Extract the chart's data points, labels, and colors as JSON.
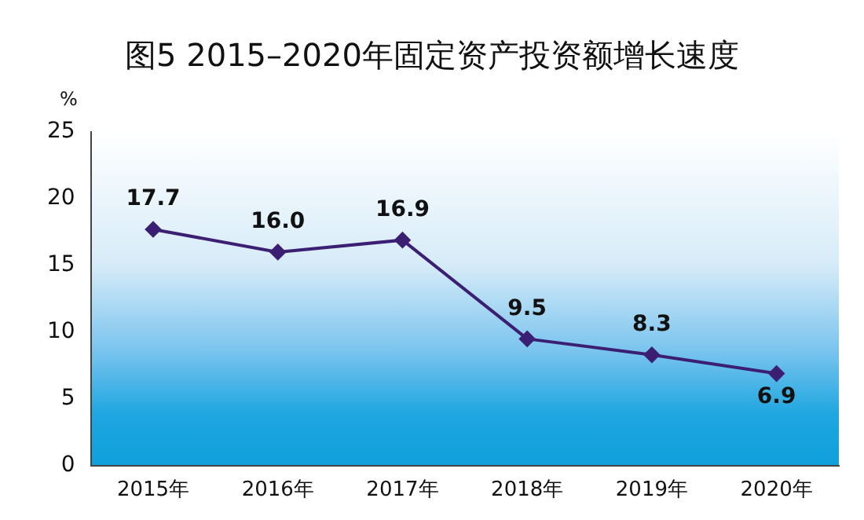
{
  "chart_data": {
    "type": "line",
    "title": "图5  2015–2020年固定资产投资额增长速度",
    "ylabel": "%",
    "categories": [
      "2015年",
      "2016年",
      "2017年",
      "2018年",
      "2019年",
      "2020年"
    ],
    "series": [
      {
        "color": "#3b1f73",
        "values": [
          17.7,
          16.0,
          16.9,
          9.5,
          8.3,
          6.9
        ],
        "value_labels": [
          "17.7",
          "16.0",
          "16.9",
          "9.5",
          "8.3",
          "6.9"
        ]
      }
    ],
    "ylim": [
      0,
      25
    ],
    "yticks": [
      0,
      5,
      10,
      15,
      20,
      25
    ],
    "grid": false,
    "legend": false,
    "marker": "diamond",
    "line_style": "solid"
  }
}
